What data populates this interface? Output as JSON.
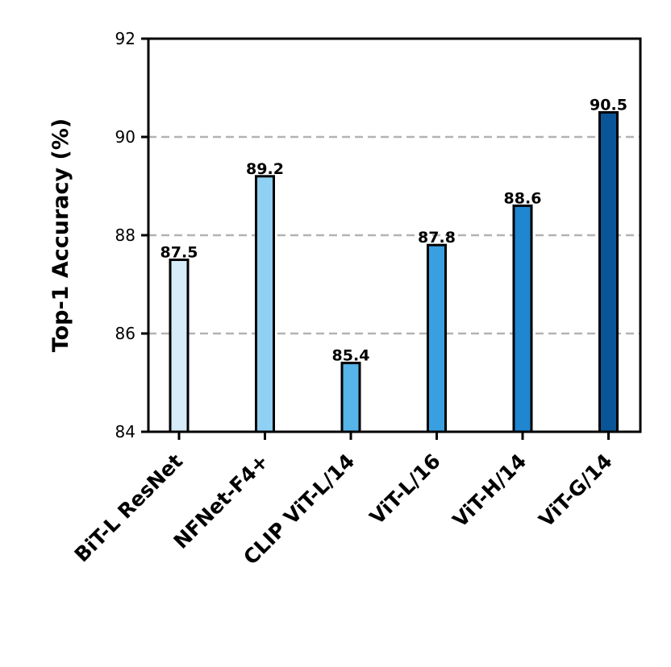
{
  "chart_data": {
    "type": "bar",
    "title": "",
    "xlabel": "",
    "ylabel": "Top-1 Accuracy (%)",
    "ylim": [
      84,
      92
    ],
    "yticks": [
      84,
      86,
      88,
      90,
      92
    ],
    "grid": "horizontal dashed",
    "categories": [
      "BiT-L ResNet",
      "NFNet-F4+",
      "CLIP ViT-L/14",
      "ViT-L/16",
      "ViT-H/14",
      "ViT-G/14"
    ],
    "values": [
      87.5,
      89.2,
      85.4,
      87.8,
      88.6,
      90.5
    ],
    "value_labels": [
      "87.5",
      "89.2",
      "85.4",
      "87.8",
      "88.6",
      "90.5"
    ],
    "colors": [
      "#d6ecf8",
      "#8fd0f3",
      "#56b4e8",
      "#3a9fe0",
      "#1f86d0",
      "#0a5597"
    ]
  }
}
